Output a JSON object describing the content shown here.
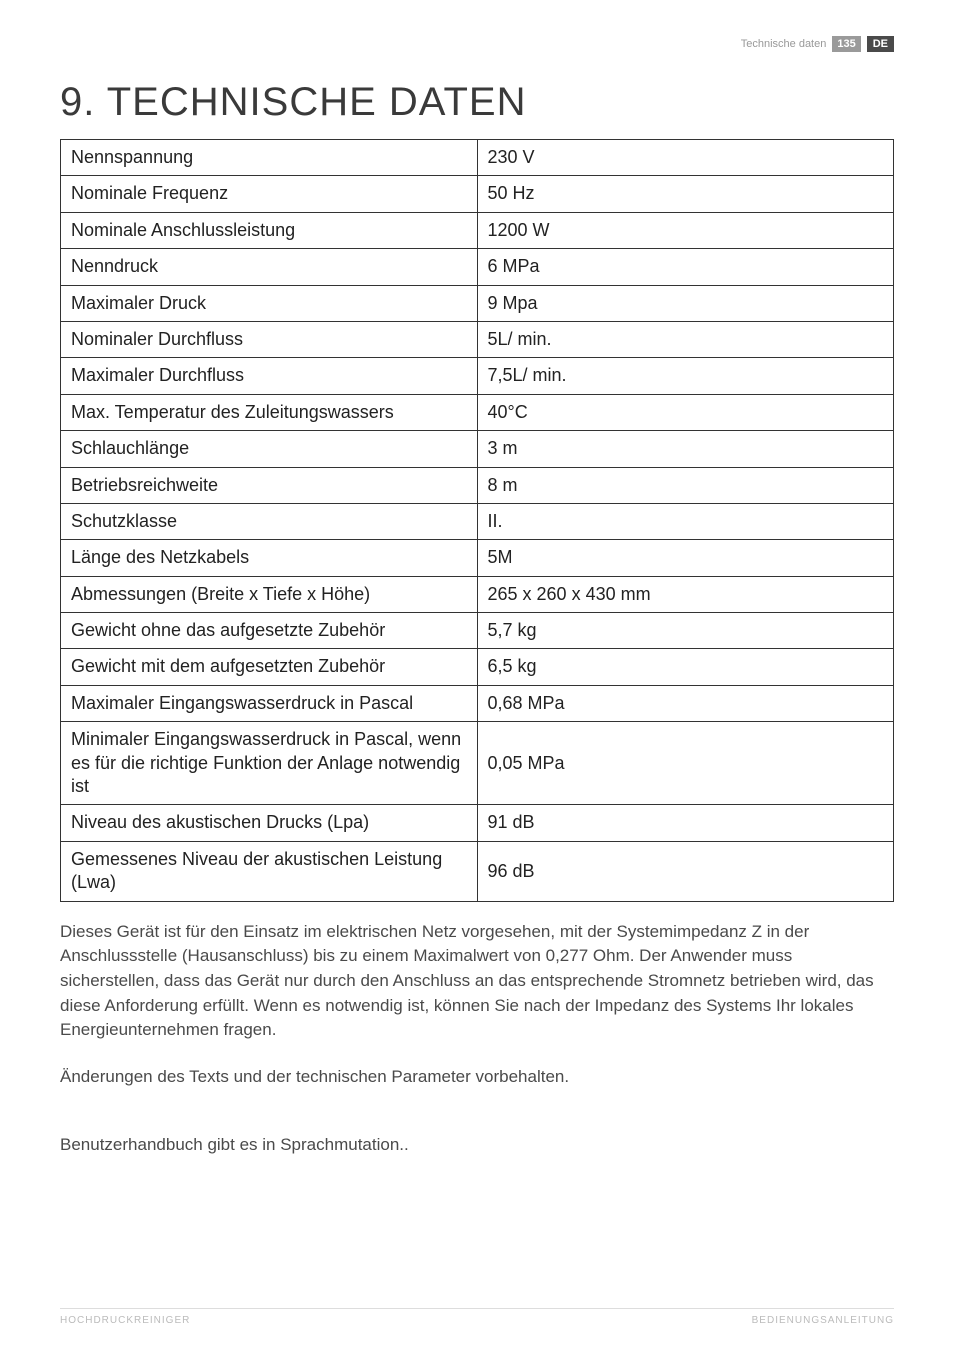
{
  "header": {
    "section": "Technische daten",
    "page_number": "135",
    "lang": "DE"
  },
  "title": "9. TECHNISCHE DATEN",
  "table": {
    "rows": [
      {
        "label": "Nennspannung",
        "value": "230 V"
      },
      {
        "label": "Nominale Frequenz",
        "value": "50 Hz"
      },
      {
        "label": "Nominale Anschlussleistung",
        "value": "1200 W"
      },
      {
        "label": "Nenndruck",
        "value": "6 MPa"
      },
      {
        "label": "Maximaler Druck",
        "value": "9 Mpa"
      },
      {
        "label": "Nominaler Durchfluss",
        "value": "5L/ min."
      },
      {
        "label": "Maximaler Durchfluss",
        "value": "7,5L/ min."
      },
      {
        "label": "Max. Temperatur des Zuleitungswassers",
        "value": "40°C"
      },
      {
        "label": "Schlauchlänge",
        "value": "3 m"
      },
      {
        "label": "Betriebsreichweite",
        "value": "8 m"
      },
      {
        "label": "Schutzklasse",
        "value": "II."
      },
      {
        "label": "Länge des Netzkabels",
        "value": "5M"
      },
      {
        "label": "Abmessungen (Breite x Tiefe x Höhe)",
        "value": "265 x 260 x 430 mm"
      },
      {
        "label": "Gewicht ohne das aufgesetzte Zubehör",
        "value": "5,7 kg"
      },
      {
        "label": "Gewicht mit dem aufgesetzten Zubehör",
        "value": "6,5 kg"
      },
      {
        "label": "Maximaler Eingangswasserdruck in Pascal",
        "value": "0,68 MPa"
      },
      {
        "label": "Minimaler Eingangswasserdruck in Pascal, wenn es für die richtige Funktion der Anlage notwendig ist",
        "value": "0,05 MPa"
      },
      {
        "label": "Niveau des akustischen Drucks (Lpa)",
        "value": "91 dB"
      },
      {
        "label": "Gemessenes Niveau der akustischen Leistung (Lwa)",
        "value": "96 dB"
      }
    ]
  },
  "paragraphs": {
    "p1": "Dieses Gerät ist für den Einsatz im elektrischen Netz vorgesehen, mit der Systemimpedanz Z in der Anschlussstelle (Hausanschluss) bis zu einem Maximalwert von 0,277 Ohm. Der Anwender muss sicherstellen, dass das Gerät nur durch den Anschluss an das entsprechende Stromnetz betrieben wird, das diese Anforderung erfüllt. Wenn es notwendig ist, können Sie nach der Impedanz des Systems Ihr lokales Energieunternehmen fragen.",
    "p2": "Änderungen des Texts und der technischen Parameter vorbehalten.",
    "p3": "Benutzerhandbuch gibt es in Sprachmutation.."
  },
  "footer": {
    "left": "HOCHDRUCKREINIGER",
    "right": "BEDIENUNGSANLEITUNG"
  },
  "style": {
    "page_bg": "#ffffff",
    "text_color": "#333333",
    "border_color": "#333333",
    "header_muted": "#999999",
    "pagenum_bg": "#9a9a9a",
    "lang_bg": "#4a4a4a",
    "footer_color": "#bbbbbb"
  }
}
